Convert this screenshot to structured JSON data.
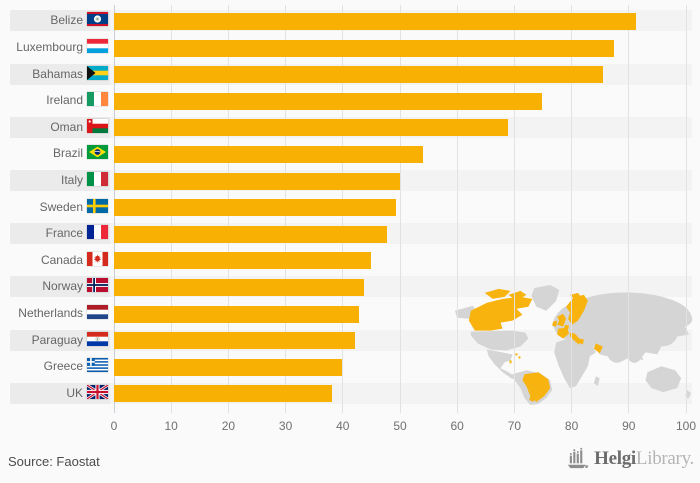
{
  "chart_data": {
    "type": "bar",
    "orientation": "horizontal",
    "title": "",
    "categories": [
      "Belize",
      "Luxembourg",
      "Bahamas",
      "Ireland",
      "Oman",
      "Brazil",
      "Italy",
      "Sweden",
      "France",
      "Canada",
      "Norway",
      "Netherlands",
      "Paraguay",
      "Greece",
      "UK"
    ],
    "values": [
      91.3,
      87.4,
      85.5,
      74.8,
      68.9,
      54.0,
      50.0,
      49.3,
      47.7,
      44.9,
      43.7,
      42.8,
      42.1,
      39.9,
      38.1
    ],
    "flag_icons": [
      "flag-belize-icon",
      "flag-luxembourg-icon",
      "flag-bahamas-icon",
      "flag-ireland-icon",
      "flag-oman-icon",
      "flag-brazil-icon",
      "flag-italy-icon",
      "flag-sweden-icon",
      "flag-france-icon",
      "flag-canada-icon",
      "flag-norway-icon",
      "flag-netherlands-icon",
      "flag-paraguay-icon",
      "flag-greece-icon",
      "flag-uk-icon"
    ],
    "xlim": [
      0,
      100
    ],
    "x_ticks": [
      "0",
      "10",
      "20",
      "30",
      "40",
      "50",
      "60",
      "70",
      "80",
      "90",
      "100"
    ],
    "bar_color": "#f8b003",
    "grid": "vertical",
    "legend": "none",
    "row_stripe_color": "#ebebeb",
    "plot_band_color": "#f3f3f3"
  },
  "footer": {
    "source": "Source: Faostat"
  },
  "logo": {
    "brand_bold": "Helgi",
    "brand_light": "Library."
  },
  "watermark_map": {
    "name": "world-map-watermark",
    "base_color": "#d4d4d4",
    "highlight_color": "#f8b003"
  }
}
